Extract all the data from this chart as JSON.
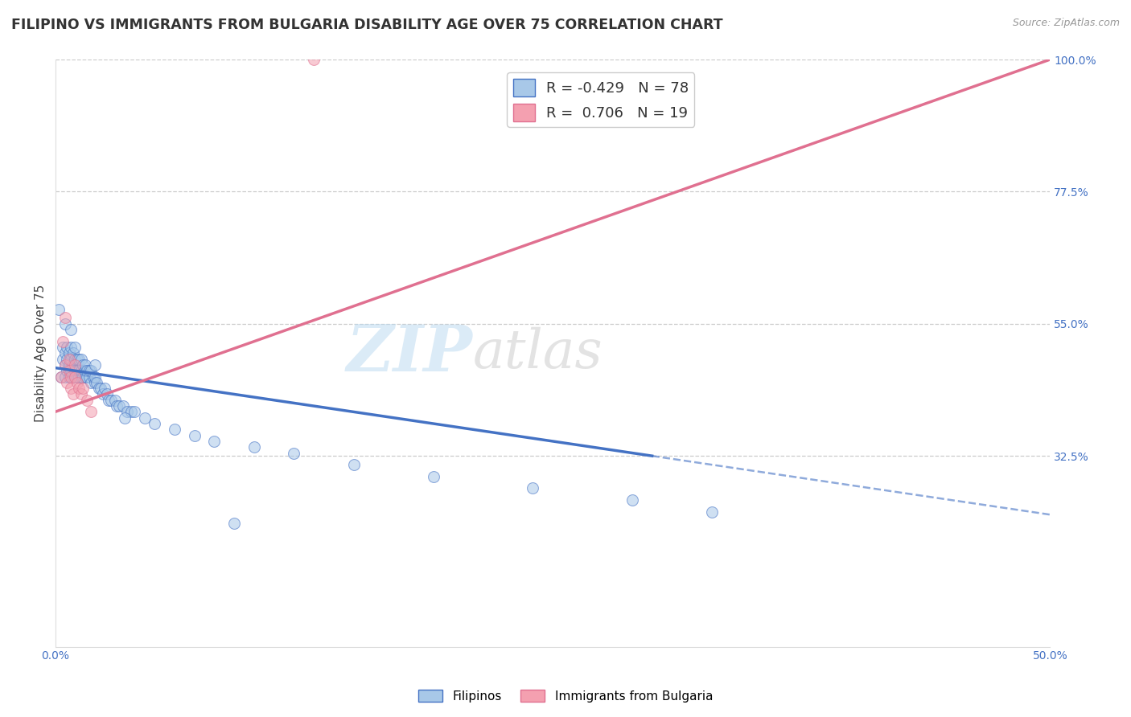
{
  "title": "FILIPINO VS IMMIGRANTS FROM BULGARIA DISABILITY AGE OVER 75 CORRELATION CHART",
  "source": "Source: ZipAtlas.com",
  "ylabel_label": "Disability Age Over 75",
  "xlim": [
    0.0,
    0.5
  ],
  "ylim": [
    0.0,
    1.0
  ],
  "xtick_positions": [
    0.0,
    0.05,
    0.1,
    0.15,
    0.2,
    0.25,
    0.3,
    0.35,
    0.4,
    0.45,
    0.5
  ],
  "xtick_labels": [
    "0.0%",
    "",
    "",
    "",
    "",
    "",
    "",
    "",
    "",
    "",
    "50.0%"
  ],
  "ytick_positions": [
    0.0,
    0.325,
    0.55,
    0.775,
    1.0
  ],
  "ytick_labels": [
    "",
    "32.5%",
    "55.0%",
    "77.5%",
    "100.0%"
  ],
  "legend_entries": [
    {
      "r": "R = -0.429",
      "n": "N = 78",
      "color": "#A8C8E8"
    },
    {
      "r": "R =  0.706",
      "n": "N = 19",
      "color": "#F4A0B0"
    }
  ],
  "color_filipino": "#A8C8E8",
  "color_bulgaria": "#F4A0B0",
  "color_line_filipino": "#4472C4",
  "color_line_bulgaria": "#E07090",
  "watermark_zip": "ZIP",
  "watermark_atlas": "atlas",
  "grid_color": "#CCCCCC",
  "background_color": "#FFFFFF",
  "fil_line_x0": 0.0,
  "fil_line_y0": 0.475,
  "fil_line_x1": 0.3,
  "fil_line_y1": 0.325,
  "fil_line_dash_x0": 0.3,
  "fil_line_dash_y0": 0.325,
  "fil_line_dash_x1": 0.5,
  "fil_line_dash_y1": 0.225,
  "bul_line_x0": 0.0,
  "bul_line_y0": 0.4,
  "bul_line_x1": 0.5,
  "bul_line_y1": 1.0,
  "filipino_x": [
    0.002,
    0.003,
    0.004,
    0.004,
    0.005,
    0.005,
    0.005,
    0.006,
    0.006,
    0.006,
    0.007,
    0.007,
    0.007,
    0.008,
    0.008,
    0.008,
    0.009,
    0.009,
    0.009,
    0.01,
    0.01,
    0.01,
    0.01,
    0.011,
    0.011,
    0.011,
    0.012,
    0.012,
    0.012,
    0.013,
    0.013,
    0.013,
    0.014,
    0.014,
    0.015,
    0.015,
    0.015,
    0.016,
    0.016,
    0.017,
    0.017,
    0.018,
    0.018,
    0.019,
    0.02,
    0.02,
    0.021,
    0.022,
    0.023,
    0.024,
    0.025,
    0.026,
    0.027,
    0.028,
    0.03,
    0.031,
    0.032,
    0.034,
    0.036,
    0.038,
    0.04,
    0.045,
    0.05,
    0.06,
    0.07,
    0.08,
    0.1,
    0.12,
    0.15,
    0.19,
    0.24,
    0.29,
    0.33,
    0.005,
    0.008,
    0.02,
    0.035,
    0.09
  ],
  "filipino_y": [
    0.575,
    0.46,
    0.49,
    0.51,
    0.48,
    0.46,
    0.5,
    0.47,
    0.49,
    0.51,
    0.46,
    0.48,
    0.5,
    0.47,
    0.49,
    0.51,
    0.46,
    0.48,
    0.5,
    0.46,
    0.47,
    0.49,
    0.51,
    0.46,
    0.47,
    0.49,
    0.46,
    0.47,
    0.49,
    0.46,
    0.47,
    0.49,
    0.46,
    0.48,
    0.46,
    0.47,
    0.48,
    0.46,
    0.47,
    0.46,
    0.47,
    0.45,
    0.47,
    0.46,
    0.45,
    0.46,
    0.45,
    0.44,
    0.44,
    0.43,
    0.44,
    0.43,
    0.42,
    0.42,
    0.42,
    0.41,
    0.41,
    0.41,
    0.4,
    0.4,
    0.4,
    0.39,
    0.38,
    0.37,
    0.36,
    0.35,
    0.34,
    0.33,
    0.31,
    0.29,
    0.27,
    0.25,
    0.23,
    0.55,
    0.54,
    0.48,
    0.39,
    0.21
  ],
  "bulgaria_x": [
    0.003,
    0.004,
    0.005,
    0.006,
    0.007,
    0.007,
    0.008,
    0.008,
    0.009,
    0.01,
    0.01,
    0.011,
    0.012,
    0.013,
    0.014,
    0.016,
    0.018,
    0.13,
    0.005
  ],
  "bulgaria_y": [
    0.46,
    0.52,
    0.48,
    0.45,
    0.47,
    0.49,
    0.44,
    0.46,
    0.43,
    0.46,
    0.48,
    0.45,
    0.44,
    0.43,
    0.44,
    0.42,
    0.4,
    1.0,
    0.56
  ],
  "title_fontsize": 12.5,
  "axis_label_fontsize": 11,
  "tick_fontsize": 10,
  "legend_fontsize": 13,
  "watermark_fontsize_zip": 58,
  "watermark_fontsize_atlas": 48,
  "scatter_size": 100,
  "scatter_alpha": 0.55
}
